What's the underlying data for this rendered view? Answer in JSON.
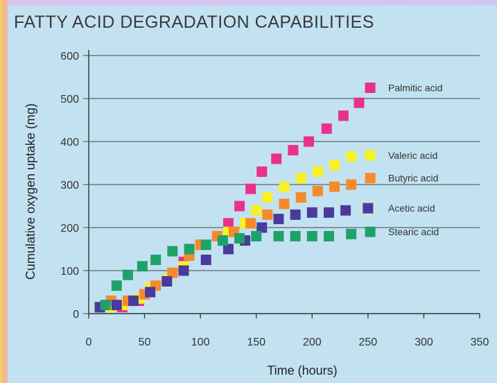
{
  "chart_data": {
    "type": "scatter",
    "title": "FATTY ACID DEGRADATION CAPABILITIES",
    "xlabel": "Time (hours)",
    "ylabel": "Cumulative oxygen uptake (mg)",
    "xlim": [
      0,
      350
    ],
    "ylim": [
      0,
      600
    ],
    "xticks": [
      "0",
      "50",
      "100",
      "150",
      "200",
      "250",
      "300",
      "350"
    ],
    "yticks": [
      "0",
      "100",
      "200",
      "300",
      "400",
      "500",
      "600"
    ],
    "grid": "horizontal",
    "series": [
      {
        "name": "Palmitic acid",
        "color": "#e8318f",
        "x": [
          10,
          20,
          30,
          45,
          55,
          70,
          85,
          100,
          115,
          125,
          135,
          145,
          155,
          168,
          183,
          197,
          213,
          228,
          242,
          252
        ],
        "y": [
          15,
          20,
          15,
          30,
          50,
          80,
          120,
          160,
          180,
          210,
          250,
          290,
          330,
          360,
          380,
          400,
          430,
          460,
          490,
          525
        ]
      },
      {
        "name": "Valeric acid",
        "color": "#f6f226",
        "x": [
          10,
          20,
          30,
          45,
          55,
          70,
          85,
          100,
          115,
          125,
          140,
          150,
          160,
          175,
          190,
          205,
          220,
          235,
          252
        ],
        "y": [
          15,
          15,
          20,
          35,
          60,
          80,
          110,
          160,
          180,
          190,
          210,
          240,
          270,
          295,
          315,
          330,
          345,
          365,
          368
        ]
      },
      {
        "name": "Butyric acid",
        "color": "#f68a2a",
        "x": [
          10,
          20,
          35,
          50,
          60,
          75,
          90,
          100,
          115,
          130,
          145,
          160,
          175,
          190,
          205,
          220,
          235,
          252
        ],
        "y": [
          15,
          30,
          30,
          45,
          65,
          95,
          135,
          160,
          180,
          190,
          210,
          230,
          255,
          270,
          285,
          295,
          300,
          315
        ]
      },
      {
        "name": "Acetic acid",
        "color": "#4a3a9c",
        "x": [
          10,
          25,
          40,
          55,
          70,
          85,
          105,
          125,
          140,
          155,
          170,
          185,
          200,
          215,
          230,
          250
        ],
        "y": [
          15,
          20,
          30,
          50,
          75,
          100,
          125,
          150,
          170,
          200,
          220,
          230,
          235,
          235,
          240,
          245
        ]
      },
      {
        "name": "Stearic acid",
        "color": "#1ea26a",
        "x": [
          15,
          25,
          35,
          48,
          60,
          75,
          90,
          105,
          120,
          135,
          150,
          170,
          185,
          200,
          215,
          235,
          252
        ],
        "y": [
          20,
          65,
          90,
          110,
          125,
          145,
          150,
          160,
          170,
          175,
          180,
          180,
          180,
          180,
          180,
          185,
          190
        ]
      }
    ]
  }
}
